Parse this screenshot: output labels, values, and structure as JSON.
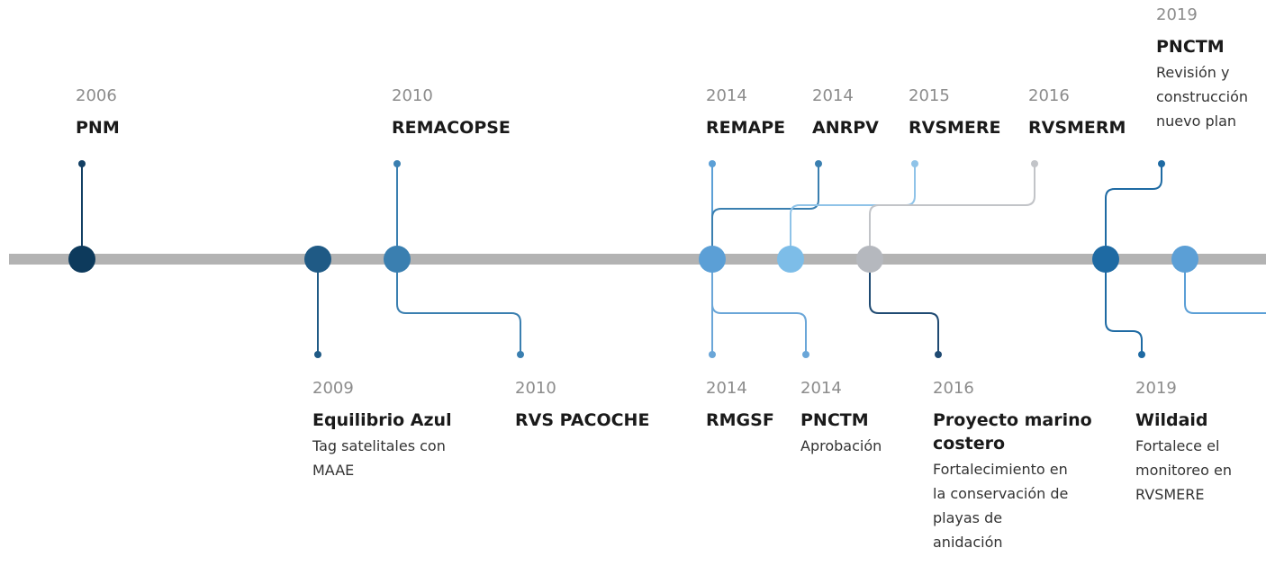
{
  "top_events": [
    {
      "year": "2006",
      "title": "PNM"
    },
    {
      "year": "2010",
      "title": "REMACOPSE"
    },
    {
      "year": "2014",
      "title": "REMAPE"
    },
    {
      "year": "2014",
      "title": "ANRPV"
    },
    {
      "year": "2015",
      "title": "RVSMERE"
    },
    {
      "year": "2016",
      "title": "RVSMERM"
    },
    {
      "year": "2019",
      "title": "PNCTM",
      "description": [
        "Revisión y",
        "construcción",
        "nuevo plan"
      ]
    }
  ],
  "bottom_events": [
    {
      "year": "2009",
      "title": "Equilibrio Azul",
      "description": [
        "Tag satelitales con",
        "MAAE"
      ]
    },
    {
      "year": "2010",
      "title": "RVS PACOCHE"
    },
    {
      "year": "2014",
      "title": "RMGSF"
    },
    {
      "year": "2014",
      "title": "PNCTM",
      "description": [
        "Aprobación"
      ]
    },
    {
      "year": "2016",
      "title": "Proyecto marino costero",
      "description": [
        "Fortalecimiento en",
        "la conservación de",
        "playas de",
        "anidación"
      ]
    },
    {
      "year": "2019",
      "title": "Wildaid",
      "description": [
        "Fortalece el",
        "monitoreo en",
        "RVSMERE"
      ]
    }
  ]
}
